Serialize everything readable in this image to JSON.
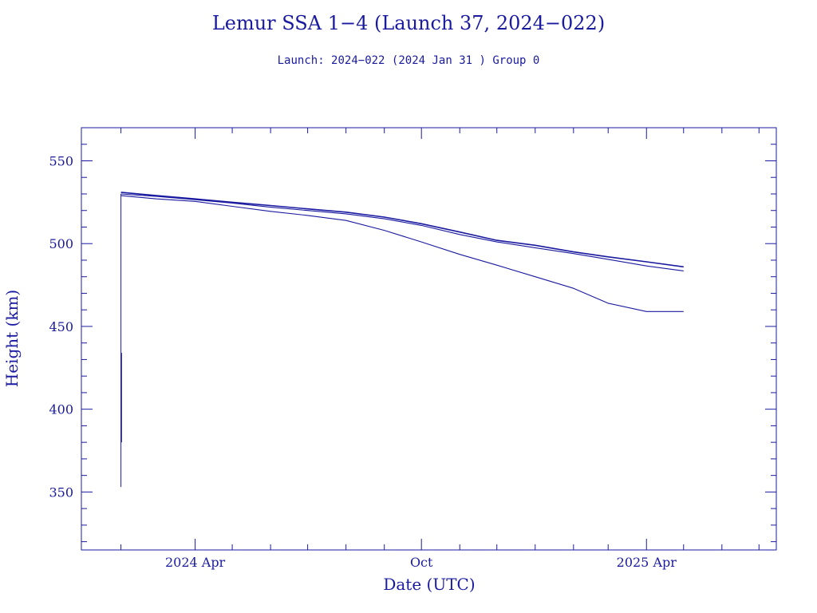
{
  "chart_data": {
    "type": "line",
    "title": "Lemur SSA 1−4 (Launch 37, 2024−022)",
    "subtitle": "Launch: 2024−022  (2024 Jan 31 )  Group 0",
    "xlabel": "Date (UTC)",
    "ylabel": "Height (km)",
    "xlim": [
      "2023-12-31",
      "2025-07-15"
    ],
    "ylim": [
      315,
      570
    ],
    "x_ticks": [
      {
        "date": "2024-04-01",
        "label": "2024 Apr"
      },
      {
        "date": "2024-10-01",
        "label": "Oct"
      },
      {
        "date": "2025-04-01",
        "label": "2025 Apr"
      }
    ],
    "x_minor_ticks": [
      "2024-02-01",
      "2024-05-01",
      "2024-06-01",
      "2024-07-01",
      "2024-08-01",
      "2024-09-01",
      "2024-11-01",
      "2024-12-01",
      "2025-01-01",
      "2025-02-01",
      "2025-03-01",
      "2025-05-01",
      "2025-06-01",
      "2025-07-01"
    ],
    "y_ticks": [
      350,
      400,
      450,
      500,
      550
    ],
    "y_minor_step": 10,
    "grid": false,
    "color": "#1a1aa0",
    "deploy_spike": {
      "date": "2024-02-01",
      "low": 353,
      "high": 530
    },
    "deploy_segments": [
      {
        "date": "2024-02-01",
        "low": 380,
        "high": 434
      }
    ],
    "series": [
      {
        "x": [
          "2024-02-01",
          "2024-03-01",
          "2024-04-01",
          "2024-05-01",
          "2024-06-01",
          "2024-07-01",
          "2024-08-01",
          "2024-09-01",
          "2024-10-01",
          "2024-11-01",
          "2024-12-01",
          "2025-01-01",
          "2025-02-01",
          "2025-03-01",
          "2025-04-01",
          "2025-05-01"
        ],
        "values": [
          531,
          529,
          527,
          525,
          523,
          521,
          519,
          516,
          512,
          507,
          502,
          499,
          495,
          492,
          489,
          486
        ]
      },
      {
        "x": [
          "2024-02-01",
          "2024-03-01",
          "2024-04-01",
          "2024-05-01",
          "2024-06-01",
          "2024-07-01",
          "2024-08-01",
          "2024-09-01",
          "2024-10-01",
          "2024-11-01",
          "2024-12-01",
          "2025-01-01",
          "2025-02-01",
          "2025-03-01",
          "2025-04-01",
          "2025-05-01"
        ],
        "values": [
          530,
          528.5,
          526.5,
          524.5,
          522,
          520,
          518,
          515,
          511,
          505.5,
          501,
          497.5,
          494,
          490.5,
          486.5,
          483.5
        ]
      },
      {
        "x": [
          "2024-02-01",
          "2024-03-01",
          "2024-04-01",
          "2024-05-01",
          "2024-06-01",
          "2024-07-01",
          "2024-08-01",
          "2024-09-01",
          "2024-10-01",
          "2024-11-01",
          "2024-12-01",
          "2025-01-01",
          "2025-02-01",
          "2025-03-01",
          "2025-04-01",
          "2025-05-01"
        ],
        "values": [
          529,
          527,
          525.5,
          522.5,
          519.5,
          517,
          514,
          508,
          501,
          493.5,
          487,
          480,
          473,
          464,
          459,
          459
        ]
      }
    ]
  }
}
